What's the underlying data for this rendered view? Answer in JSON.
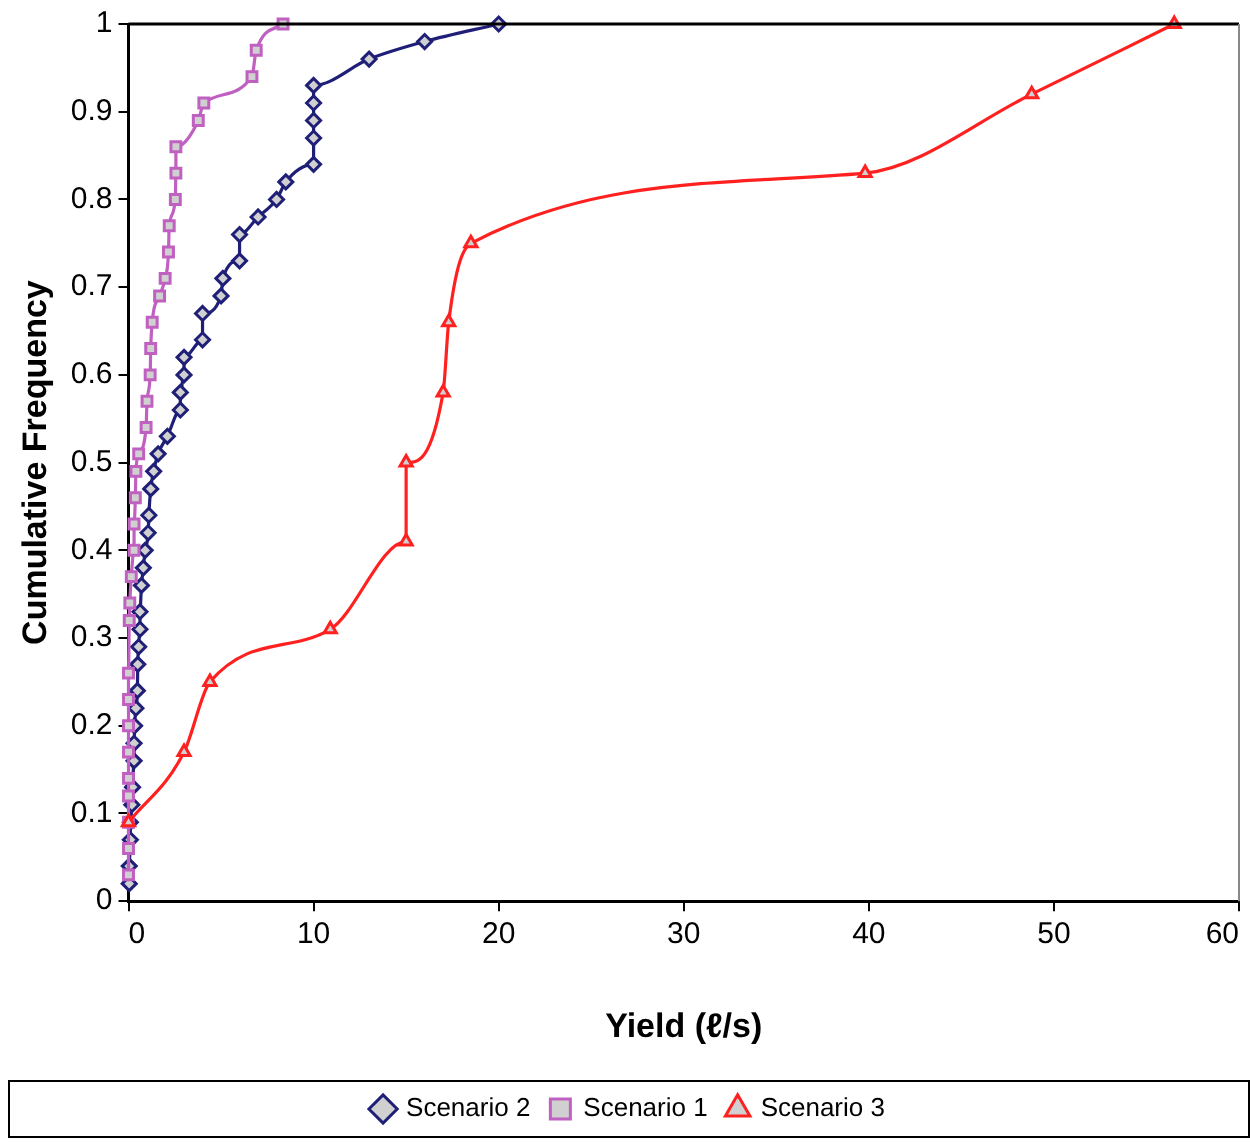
{
  "chart_data": {
    "type": "line",
    "xlabel": "Yield (ℓ/s)",
    "ylabel": "Cumulative Frequency",
    "xlim": [
      0,
      60
    ],
    "xticks": [
      0,
      10,
      20,
      30,
      40,
      50,
      60
    ],
    "ylim": [
      0,
      1
    ],
    "yticks": [
      0,
      0.1,
      0.2,
      0.3,
      0.4,
      0.5,
      0.6,
      0.7,
      0.8,
      0.9,
      1
    ],
    "grid": false,
    "legend": "bottom",
    "series": [
      {
        "name": "Scenario 2",
        "color": "#1f1f78",
        "marker": "diamond",
        "x": [
          0.04,
          0.04,
          0.1,
          0.1,
          0.18,
          0.22,
          0.3,
          0.3,
          0.33,
          0.4,
          0.48,
          0.5,
          0.55,
          0.62,
          0.62,
          0.7,
          0.8,
          0.9,
          1.06,
          1.1,
          1.2,
          1.36,
          1.6,
          2.1,
          2.8,
          2.8,
          3,
          3,
          4,
          4,
          5,
          5.1,
          6,
          6,
          7,
          8,
          8.5,
          10,
          10,
          10,
          10,
          10,
          13,
          16,
          20
        ],
        "values": [
          0.02,
          0.04,
          0.07,
          0.09,
          0.11,
          0.13,
          0.16,
          0.18,
          0.2,
          0.22,
          0.24,
          0.27,
          0.29,
          0.31,
          0.33,
          0.36,
          0.38,
          0.4,
          0.42,
          0.44,
          0.47,
          0.49,
          0.51,
          0.53,
          0.56,
          0.58,
          0.6,
          0.62,
          0.64,
          0.67,
          0.69,
          0.71,
          0.73,
          0.76,
          0.78,
          0.8,
          0.82,
          0.84,
          0.87,
          0.89,
          0.91,
          0.93,
          0.96,
          0.98,
          1
        ]
      },
      {
        "name": "Scenario 1",
        "color": "#c060c0",
        "marker": "square",
        "x": [
          0,
          0,
          0,
          0,
          0,
          0,
          0,
          0,
          0,
          0.04,
          0.07,
          0.15,
          0.3,
          0.3,
          0.37,
          0.4,
          0.55,
          0.95,
          1,
          1.17,
          1.2,
          1.28,
          1.68,
          1.98,
          2.16,
          2.2,
          2.53,
          2.56,
          2.56,
          3.77,
          4.07,
          6.67,
          6.9,
          8.35
        ],
        "values": [
          0.03,
          0.06,
          0.09,
          0.12,
          0.14,
          0.17,
          0.2,
          0.23,
          0.26,
          0.32,
          0.34,
          0.37,
          0.4,
          0.43,
          0.46,
          0.49,
          0.51,
          0.54,
          0.57,
          0.6,
          0.63,
          0.66,
          0.69,
          0.71,
          0.74,
          0.77,
          0.8,
          0.83,
          0.86,
          0.89,
          0.91,
          0.94,
          0.97,
          1
        ]
      },
      {
        "name": "Scenario 3",
        "color": "#ff2020",
        "marker": "triangle",
        "x": [
          0,
          3,
          4.4,
          10.9,
          15,
          15,
          17,
          17.3,
          18.5,
          39.8,
          48.8,
          56.5
        ],
        "values": [
          0.09,
          0.17,
          0.25,
          0.31,
          0.41,
          0.5,
          0.58,
          0.66,
          0.75,
          0.83,
          0.92,
          1
        ]
      }
    ]
  }
}
